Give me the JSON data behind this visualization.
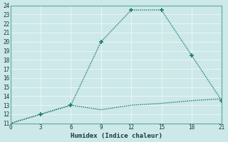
{
  "xlabel": "Humidex (Indice chaleur)",
  "background_color": "#cce8e8",
  "grid_color": "#e8f4f4",
  "line1_x": [
    0,
    3,
    6,
    9,
    12,
    15,
    18,
    21
  ],
  "line1_y": [
    11,
    12,
    13,
    20,
    23.5,
    23.5,
    18.5,
    13.5
  ],
  "line2_x": [
    0,
    3,
    6,
    9,
    12,
    15,
    18,
    21
  ],
  "line2_y": [
    11,
    12,
    13,
    12.5,
    13,
    13.2,
    13.5,
    13.7
  ],
  "line_color": "#1a7870",
  "xlim": [
    0,
    21
  ],
  "ylim": [
    11,
    24
  ],
  "xticks": [
    0,
    3,
    6,
    9,
    12,
    15,
    18,
    21
  ],
  "yticks": [
    11,
    12,
    13,
    14,
    15,
    16,
    17,
    18,
    19,
    20,
    21,
    22,
    23,
    24
  ],
  "marker": "+",
  "marker_size": 5,
  "line_width": 1.0
}
